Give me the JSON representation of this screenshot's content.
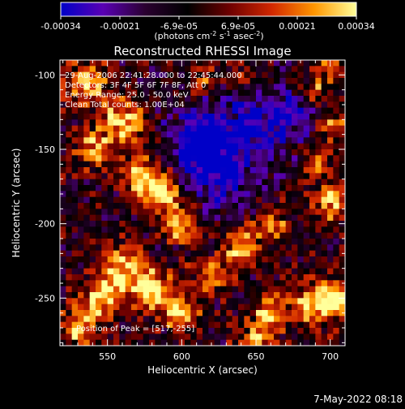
{
  "colorbar": {
    "ticks": [
      "-0.00034",
      "-0.00021",
      "-6.9e-05",
      "6.9e-05",
      "0.00021",
      "0.00034"
    ],
    "unit_label": "(photons cm",
    "unit_exp1": "-2",
    "unit_mid": " s",
    "unit_exp2": "-1",
    "unit_mid2": " asec",
    "unit_exp3": "-2",
    "unit_end": ")",
    "range": [
      -0.00034,
      0.00034
    ],
    "colors": [
      "#0000c8",
      "#5a00b4",
      "#2a0030",
      "#000000",
      "#6e0000",
      "#d22800",
      "#ff9600",
      "#ffff9b"
    ]
  },
  "chart_data": {
    "type": "heatmap",
    "title": "Reconstructed RHESSI Image",
    "xlabel": "Heliocentric X (arcsec)",
    "ylabel": "Heliocentric Y (arcsec)",
    "xlim": [
      518,
      710
    ],
    "ylim": [
      -282,
      -90
    ],
    "xticks": [
      550,
      600,
      650,
      700
    ],
    "yticks": [
      -100,
      -150,
      -200,
      -250
    ],
    "annotations": [
      "29-Aug-2006 22:41:28.000 to 22:45:44.000",
      "Detectors: 3F 4F 5F 6F 7F 8F, Att 0",
      "Energy Range: 25.0 - 50.0 keV",
      "Clean     Total counts: 1.00E+04"
    ],
    "peak_label": "Position of Peak = [517,-255]",
    "peak": [
      517,
      -255
    ],
    "grid_cell_arcsec": 4,
    "colormap": "blue-purple-black-red-yellow-white",
    "description_value_range": [
      -0.00034,
      0.00034
    ]
  },
  "footer": {
    "date": "7-May-2022 08:18"
  }
}
